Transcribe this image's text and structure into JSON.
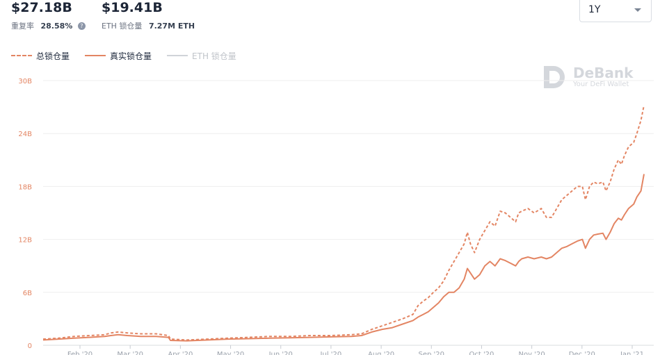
{
  "stats": {
    "total_value": "$27.18B",
    "repeat_label": "重复率",
    "repeat_rate": "28.58%",
    "real_value": "$19.41B",
    "eth_label": "ETH 锁仓量",
    "eth_amount": "7.27M ETH"
  },
  "range_select": {
    "value": "1Y"
  },
  "watermark": {
    "title": "DeBank",
    "subtitle": "Your DeFi Wallet"
  },
  "icons": {
    "help": "help-circle-icon",
    "caret": "chevron-down-icon",
    "logo": "debank-logo-icon"
  },
  "colors": {
    "accent": "#e38563",
    "muted": "#d0d3d8",
    "grid": "#eeeeee"
  },
  "chart_data": {
    "type": "line",
    "ylim": [
      0,
      30
    ],
    "y_ticks": [
      "0",
      "6B",
      "12B",
      "18B",
      "24B",
      "30B"
    ],
    "x_ticks": [
      "Feb '20",
      "Mar '20",
      "Apr '20",
      "May '20",
      "Jun '20",
      "Jul '20",
      "Aug '20",
      "Sep '20",
      "Oct '20",
      "Nov '20",
      "Dec '20",
      "Jan '21"
    ],
    "x_start": 0,
    "x_end": 378,
    "series": [
      {
        "name": "总锁仓量",
        "style": "dashed",
        "color": "#e38563",
        "points": [
          [
            0,
            0.7
          ],
          [
            15,
            0.8
          ],
          [
            30,
            1.0
          ],
          [
            45,
            1.1
          ],
          [
            60,
            1.2
          ],
          [
            66,
            1.4
          ],
          [
            73,
            1.5
          ],
          [
            82,
            1.4
          ],
          [
            95,
            1.3
          ],
          [
            110,
            1.3
          ],
          [
            122,
            1.1
          ],
          [
            124,
            0.7
          ],
          [
            140,
            0.6
          ],
          [
            160,
            0.7
          ],
          [
            180,
            0.8
          ],
          [
            200,
            0.9
          ],
          [
            220,
            1.0
          ],
          [
            240,
            1.0
          ],
          [
            260,
            1.1
          ],
          [
            280,
            1.1
          ],
          [
            300,
            1.2
          ],
          [
            310,
            1.3
          ],
          [
            320,
            1.8
          ],
          [
            330,
            2.2
          ],
          [
            340,
            2.6
          ],
          [
            350,
            3.0
          ],
          [
            360,
            3.5
          ],
          [
            365,
            4.5
          ],
          [
            370,
            5.0
          ],
          [
            375,
            5.4
          ],
          [
            380,
            6.0
          ],
          [
            385,
            6.5
          ],
          [
            390,
            7.3
          ],
          [
            395,
            8.5
          ],
          [
            400,
            9.5
          ],
          [
            405,
            10.5
          ],
          [
            410,
            11.5
          ],
          [
            413,
            12.8
          ],
          [
            416,
            11.5
          ],
          [
            420,
            10.5
          ],
          [
            425,
            12.0
          ],
          [
            430,
            13.0
          ],
          [
            435,
            14.0
          ],
          [
            440,
            13.5
          ],
          [
            445,
            15.2
          ],
          [
            450,
            15.0
          ],
          [
            455,
            14.5
          ],
          [
            460,
            14.0
          ],
          [
            463,
            15.0
          ],
          [
            466,
            15.2
          ],
          [
            472,
            15.5
          ],
          [
            478,
            15.0
          ],
          [
            485,
            15.5
          ],
          [
            490,
            14.5
          ],
          [
            495,
            14.5
          ],
          [
            500,
            15.5
          ],
          [
            505,
            16.5
          ],
          [
            510,
            17.0
          ],
          [
            515,
            17.5
          ],
          [
            520,
            18.0
          ],
          [
            525,
            18.0
          ],
          [
            528,
            16.5
          ],
          [
            532,
            18.0
          ],
          [
            536,
            18.5
          ],
          [
            540,
            18.3
          ],
          [
            545,
            18.5
          ],
          [
            548,
            17.5
          ],
          [
            552,
            18.5
          ],
          [
            556,
            20.0
          ],
          [
            560,
            21.0
          ],
          [
            563,
            20.5
          ],
          [
            566,
            21.5
          ],
          [
            570,
            22.5
          ],
          [
            575,
            23.0
          ],
          [
            578,
            24.0
          ],
          [
            582,
            25.5
          ],
          [
            585,
            27.2
          ]
        ]
      },
      {
        "name": "真实锁仓量",
        "style": "solid",
        "color": "#e38563",
        "points": [
          [
            0,
            0.6
          ],
          [
            15,
            0.7
          ],
          [
            30,
            0.8
          ],
          [
            45,
            0.9
          ],
          [
            60,
            1.0
          ],
          [
            66,
            1.1
          ],
          [
            73,
            1.2
          ],
          [
            82,
            1.1
          ],
          [
            95,
            1.0
          ],
          [
            110,
            1.0
          ],
          [
            122,
            0.9
          ],
          [
            124,
            0.55
          ],
          [
            140,
            0.5
          ],
          [
            160,
            0.6
          ],
          [
            180,
            0.7
          ],
          [
            200,
            0.75
          ],
          [
            220,
            0.8
          ],
          [
            240,
            0.85
          ],
          [
            260,
            0.9
          ],
          [
            280,
            0.95
          ],
          [
            300,
            1.0
          ],
          [
            310,
            1.1
          ],
          [
            320,
            1.5
          ],
          [
            330,
            1.8
          ],
          [
            340,
            2.0
          ],
          [
            350,
            2.4
          ],
          [
            360,
            2.8
          ],
          [
            365,
            3.2
          ],
          [
            370,
            3.5
          ],
          [
            375,
            3.8
          ],
          [
            380,
            4.3
          ],
          [
            385,
            4.8
          ],
          [
            390,
            5.5
          ],
          [
            395,
            6.0
          ],
          [
            400,
            6.0
          ],
          [
            405,
            6.5
          ],
          [
            410,
            7.5
          ],
          [
            413,
            8.7
          ],
          [
            416,
            8.2
          ],
          [
            420,
            7.5
          ],
          [
            425,
            8.0
          ],
          [
            430,
            9.0
          ],
          [
            435,
            9.5
          ],
          [
            440,
            9.0
          ],
          [
            445,
            9.8
          ],
          [
            450,
            9.6
          ],
          [
            455,
            9.3
          ],
          [
            460,
            9.0
          ],
          [
            463,
            9.5
          ],
          [
            466,
            9.8
          ],
          [
            472,
            10.0
          ],
          [
            478,
            9.8
          ],
          [
            485,
            10.0
          ],
          [
            490,
            9.8
          ],
          [
            495,
            10.0
          ],
          [
            500,
            10.5
          ],
          [
            505,
            11.0
          ],
          [
            510,
            11.2
          ],
          [
            515,
            11.5
          ],
          [
            520,
            11.8
          ],
          [
            525,
            12.0
          ],
          [
            528,
            11.0
          ],
          [
            532,
            12.0
          ],
          [
            536,
            12.5
          ],
          [
            540,
            12.6
          ],
          [
            545,
            12.7
          ],
          [
            548,
            12.0
          ],
          [
            552,
            12.8
          ],
          [
            556,
            13.8
          ],
          [
            560,
            14.4
          ],
          [
            563,
            14.2
          ],
          [
            566,
            14.8
          ],
          [
            570,
            15.5
          ],
          [
            575,
            16.0
          ],
          [
            578,
            16.8
          ],
          [
            582,
            17.5
          ],
          [
            585,
            19.4
          ]
        ]
      }
    ]
  }
}
